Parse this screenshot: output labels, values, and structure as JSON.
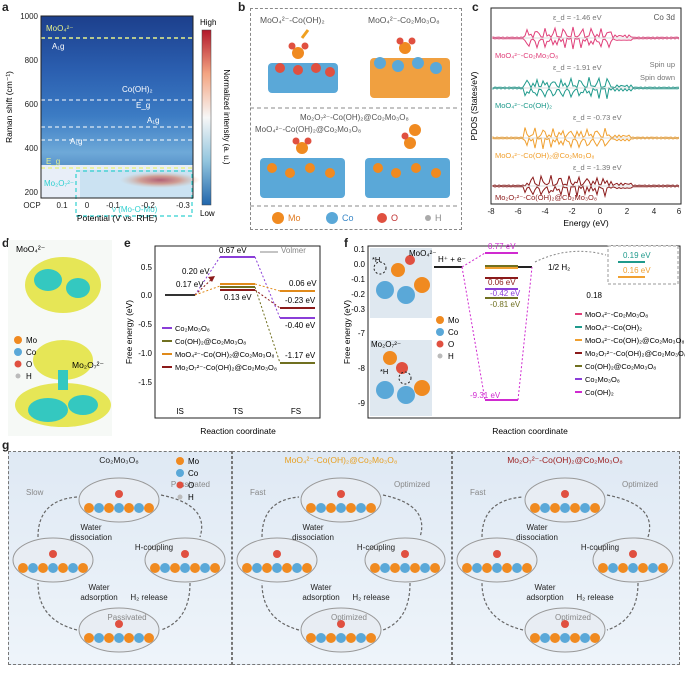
{
  "panel_labels": {
    "a": "a",
    "b": "b",
    "c": "c",
    "d": "d",
    "e": "e",
    "f": "f",
    "g": "g"
  },
  "panel_a": {
    "ylabel": "Raman shift (cm⁻¹)",
    "xlabel": "Potential (V vs. RHE)",
    "yticks": [
      "1000",
      "800",
      "600",
      "400",
      "200"
    ],
    "xticks": [
      "OCP",
      "0.1",
      "0",
      "-0.1",
      "-0.2",
      "-0.3"
    ],
    "colorbar_title": "Normalized intensity (a. u.)",
    "colorbar_high": "High",
    "colorbar_low": "Low",
    "annotations": {
      "moo4": "MoO₄²⁻",
      "a1g_top": "A₁g",
      "cooh2": "Co(OH)₂",
      "eg_mid": "E_g",
      "a1g_mid": "A₁g",
      "a1g_low": "A₁g",
      "eg_low": "E_g",
      "mo2o7": "Mo₂O₇²⁻",
      "vmo": "ν (Mo-O-Mo)"
    }
  },
  "panel_b": {
    "titles": [
      "MoO₄²⁻-Co(OH)₂",
      "MoO₄²⁻-Co₂Mo₃O₈",
      "Mo₂O₇²⁻-Co(OH)₂@Co₂Mo₃O₈",
      "MoO₄²⁻-Co(OH)₂@Co₂Mo₃O₈"
    ],
    "legend": [
      "Mo",
      "Co",
      "O",
      "H"
    ]
  },
  "panel_c": {
    "xlabel": "Energy (eV)",
    "ylabel": "PDOS (States/eV)",
    "xticks": [
      "-8",
      "-6",
      "-4",
      "-2",
      "0",
      "2",
      "4",
      "6"
    ],
    "legend": {
      "co3d": "Co 3d",
      "spin_up": "Spin up",
      "spin_down": "Spin down"
    },
    "traces": [
      {
        "label": "MoO₄²⁻-Co₂Mo₃O₈",
        "ed": "ε_d = -1.46 eV",
        "color": "#e0407a"
      },
      {
        "label": "MoO₄²⁻-Co(OH)₂",
        "ed": "ε_d = -1.91 eV",
        "color": "#1f9a8c"
      },
      {
        "label": "MoO₄²⁻-Co(OH)₂@Co₂Mo₃O₈",
        "ed": "ε_d = -0.73 eV",
        "color": "#f0a030"
      },
      {
        "label": "Mo₂O₇²⁻-Co(OH)₂@Co₂Mo₃O₈",
        "ed": "ε_d = -1.39 eV",
        "color": "#8b1a1a"
      }
    ]
  },
  "panel_d": {
    "top": "MoO₄²⁻",
    "bottom": "Mo₂O₇²⁻",
    "legend": [
      "Mo",
      "Co",
      "O",
      "H"
    ]
  },
  "panel_e": {
    "ylabel": "Free energy (eV)",
    "xlabel": "Reaction coordinate",
    "xticks": [
      "IS",
      "TS",
      "FS"
    ],
    "yticks": [
      "0.5",
      "0.0",
      "-0.5",
      "-1.0",
      "-1.5"
    ],
    "volmer": "Volmer",
    "values": {
      "ts1": "0.67 eV",
      "ts2": "0.20 eV",
      "ts3": "0.17 eV",
      "ts4": "0.13 eV",
      "fs1": "0.06 eV",
      "fs2": "-0.23 eV",
      "fs3": "-0.40 eV",
      "fs4": "-1.17 eV"
    },
    "legend": [
      "Co₂Mo₃O₈",
      "Co(OH)₂@Co₂Mo₃O₈",
      "MoO₄²⁻-Co(OH)₂@Co₂Mo₃O₈",
      "Mo₂O₇²⁻-Co(OH)₂@Co₂Mo₃O₈"
    ],
    "colors": [
      "#8a3ed8",
      "#707020",
      "#e08a1a",
      "#8b1a1a"
    ]
  },
  "panel_f": {
    "ylabel": "Free energy (eV)",
    "xlabel": "Reaction coordinate",
    "yticks": [
      "0.1",
      "0.0",
      "-0.1",
      "-0.2",
      "-0.3",
      "-7",
      "-8",
      "-9"
    ],
    "hlabel": "H⁺ + e⁻",
    "h2": "1/2 H₂",
    "inset_tick": "0.18",
    "values": {
      "v1": "0.77 eV",
      "v2": "0.06 eV",
      "v3": "-0.42 eV",
      "v4": "-0.81 eV",
      "v5": "-9.31 eV",
      "inset1": "0.19 eV",
      "inset2": "0.16 eV"
    },
    "legend": [
      "MoO₄²⁻-Co₂Mo₃O₈",
      "MoO₄²⁻-Co(OH)₂",
      "MoO₄²⁻-Co(OH)₂@Co₂Mo₃O₈",
      "Mo₂O₇²⁻-Co(OH)₂@Co₂Mo₃O₈",
      "Co(OH)₂@Co₂Mo₃O₈",
      "Co₂Mo₃O₈",
      "Co(OH)₂"
    ],
    "legend_colors": [
      "#e0407a",
      "#1f9a8c",
      "#f0a030",
      "#8b1a1a",
      "#707020",
      "#8a3ed8",
      "#d02ad0"
    ],
    "struct_labels": {
      "top": "MoO₄²⁻",
      "bottom": "Mo₂O₇²⁻",
      "h": "*H"
    },
    "atoms": [
      "Mo",
      "Co",
      "O",
      "H"
    ]
  },
  "panel_g": {
    "panels": [
      {
        "title": "Co₂Mo₃O₈",
        "color": "#222",
        "speed": "Slow",
        "top_right": "Passivated",
        "bottom_left": "Passivated",
        "wd": "Water\ndissociation",
        "hc": "H-coupling",
        "wa": "Water\nadsorption",
        "h2": "H₂  release"
      },
      {
        "title": "MoO₄²⁻-Co(OH)₂@Co₂Mo₃O₈",
        "color": "#e8a020",
        "speed": "Fast",
        "top_right": "Optimized",
        "bottom_left": "Optimized",
        "wd": "Water\ndissociation",
        "hc": "H-coupling",
        "wa": "Water\nadsorption",
        "h2": "H₂  release"
      },
      {
        "title": "Mo₂O₇²⁻-Co(OH)₂@Co₂Mo₃O₈",
        "color": "#9b1b1b",
        "speed": "Fast",
        "top_right": "Optimized",
        "bottom_left": "Optimized",
        "wd": "Water\ndissociation",
        "hc": "H-coupling",
        "wa": "Water\nadsorption",
        "h2": "H₂  release"
      }
    ],
    "legend": [
      "Mo",
      "Co",
      "O",
      "H"
    ]
  }
}
